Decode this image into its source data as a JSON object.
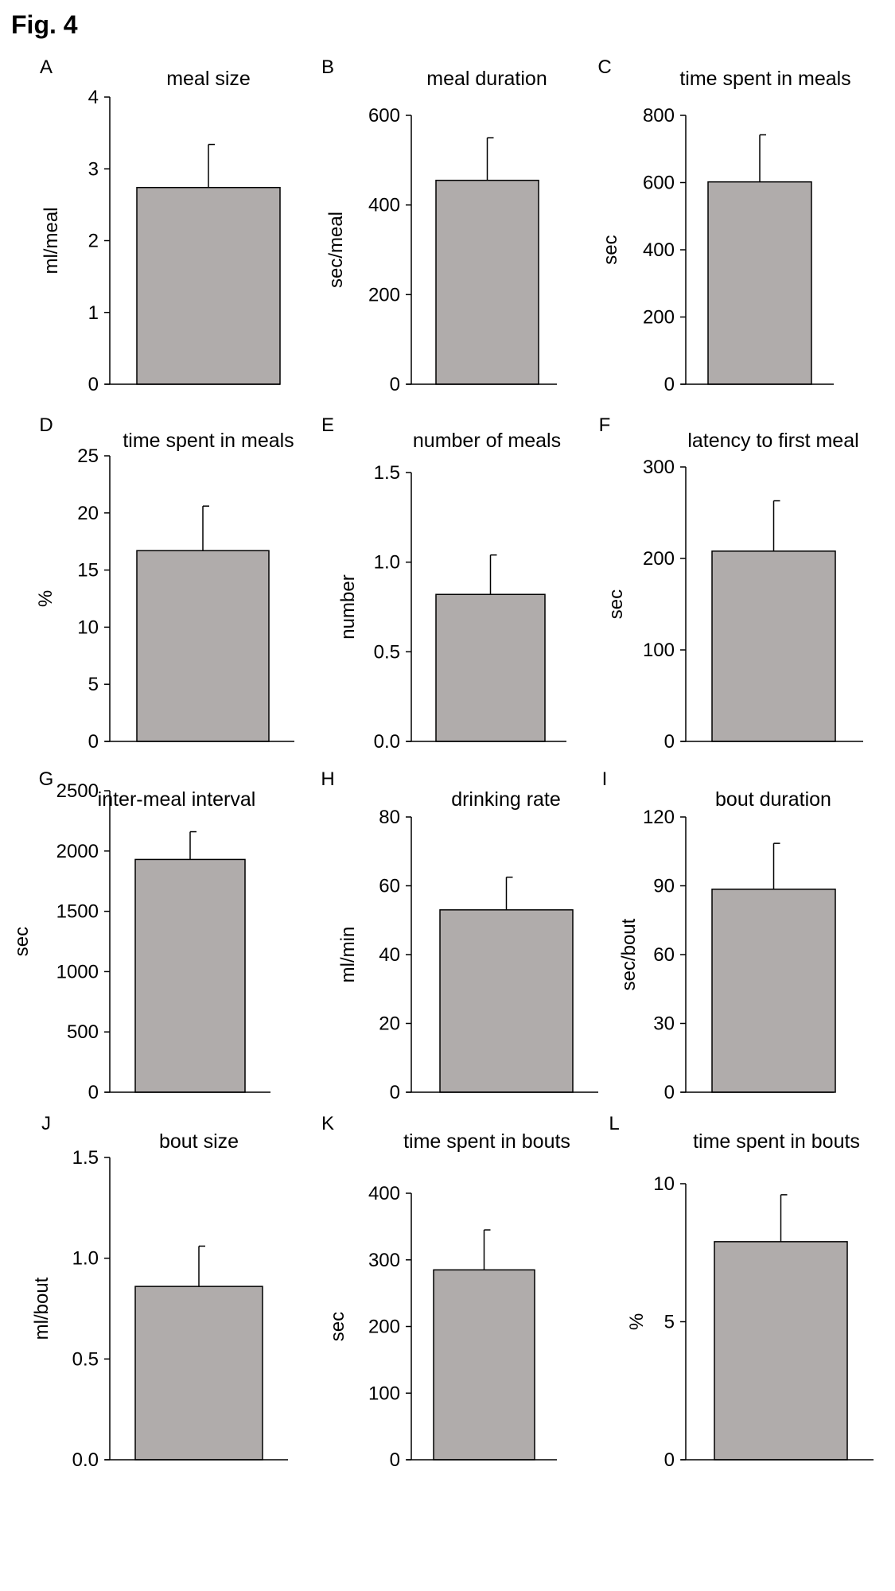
{
  "figure_label": "Fig. 4",
  "chart_data": [
    {
      "type": "bar",
      "panel": "A",
      "title": "meal size",
      "ylabel": "ml/meal",
      "yticks": [
        "0",
        "1",
        "2",
        "3",
        "4"
      ],
      "ylim": [
        0,
        4
      ],
      "value": 2.74,
      "error": 0.6,
      "bar_color": "#b0acab"
    },
    {
      "type": "bar",
      "panel": "B",
      "title": "meal duration",
      "ylabel": "sec/meal",
      "yticks": [
        "0",
        "200",
        "400",
        "600"
      ],
      "ylim": [
        0,
        600
      ],
      "value": 455,
      "error": 95,
      "bar_color": "#b0acab"
    },
    {
      "type": "bar",
      "panel": "C",
      "title": "time spent in meals",
      "ylabel": "sec",
      "yticks": [
        "0",
        "200",
        "400",
        "600",
        "800"
      ],
      "ylim": [
        0,
        800
      ],
      "value": 602,
      "error": 140,
      "bar_color": "#b0acab"
    },
    {
      "type": "bar",
      "panel": "D",
      "title": "time spent in meals",
      "ylabel": "%",
      "yticks": [
        "0",
        "5",
        "10",
        "15",
        "20",
        "25"
      ],
      "ylim": [
        0,
        25
      ],
      "value": 16.7,
      "error": 3.9,
      "bar_color": "#b0acab"
    },
    {
      "type": "bar",
      "panel": "E",
      "title": "number of meals",
      "ylabel": "number",
      "yticks": [
        "0.0",
        "0.5",
        "1.0",
        "1.5"
      ],
      "ylim": [
        0,
        1.5
      ],
      "value": 0.82,
      "error": 0.22,
      "bar_color": "#b0acab"
    },
    {
      "type": "bar",
      "panel": "F",
      "title": "latency to first meal",
      "ylabel": "sec",
      "yticks": [
        "0",
        "100",
        "200",
        "300"
      ],
      "ylim": [
        0,
        300
      ],
      "value": 208,
      "error": 55,
      "bar_color": "#b0acab"
    },
    {
      "type": "bar",
      "panel": "G",
      "title": "inter-meal interval",
      "ylabel": "sec",
      "yticks": [
        "0",
        "500",
        "1000",
        "1500",
        "2000",
        "2500"
      ],
      "ylim": [
        0,
        2500
      ],
      "value": 1930,
      "error": 230,
      "bar_color": "#b0acab"
    },
    {
      "type": "bar",
      "panel": "H",
      "title": "drinking rate",
      "ylabel": "ml/min",
      "yticks": [
        "0",
        "20",
        "40",
        "60",
        "80"
      ],
      "ylim": [
        0,
        80
      ],
      "value": 53,
      "error": 9.5,
      "bar_color": "#b0acab"
    },
    {
      "type": "bar",
      "panel": "I",
      "title": "bout duration",
      "ylabel": "sec/bout",
      "yticks": [
        "0",
        "30",
        "60",
        "90",
        "120"
      ],
      "ylim": [
        0,
        120
      ],
      "value": 88.5,
      "error": 20,
      "bar_color": "#b0acab"
    },
    {
      "type": "bar",
      "panel": "J",
      "title": "bout size",
      "ylabel": "ml/bout",
      "yticks": [
        "0.0",
        "0.5",
        "1.0",
        "1.5"
      ],
      "ylim": [
        0,
        1.5
      ],
      "value": 0.86,
      "error": 0.2,
      "bar_color": "#b0acab"
    },
    {
      "type": "bar",
      "panel": "K",
      "title": "time spent in bouts",
      "ylabel": "sec",
      "yticks": [
        "0",
        "100",
        "200",
        "300",
        "400"
      ],
      "ylim": [
        0,
        400
      ],
      "value": 285,
      "error": 60,
      "bar_color": "#b0acab"
    },
    {
      "type": "bar",
      "panel": "L",
      "title": "time spent in bouts",
      "ylabel": "%",
      "yticks": [
        "0",
        "5",
        "10"
      ],
      "ylim": [
        0,
        10
      ],
      "value": 7.9,
      "error": 1.7,
      "bar_color": "#b0acab"
    }
  ]
}
